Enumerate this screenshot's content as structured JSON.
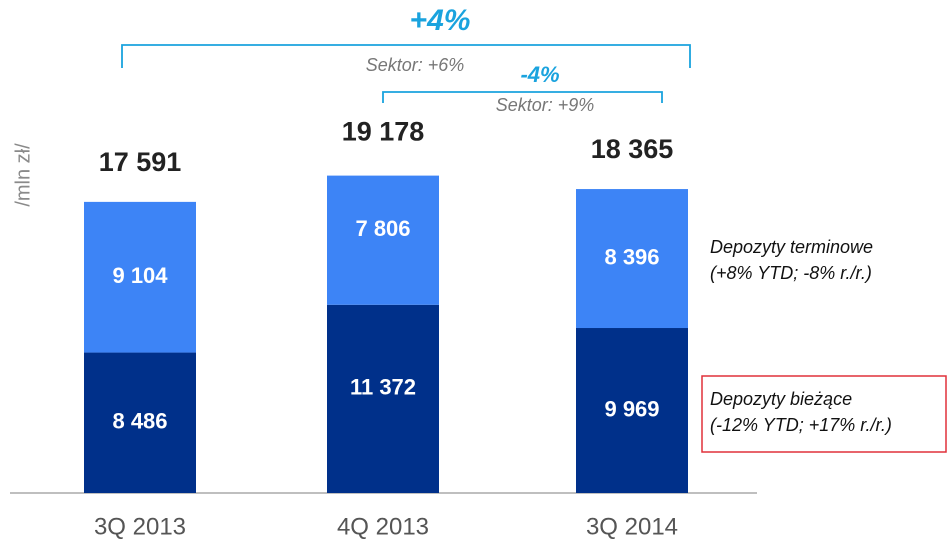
{
  "chart_data": {
    "type": "stacked_bar",
    "y_axis_label": "/mln zł/",
    "categories": [
      "3Q 2013",
      "4Q 2013",
      "3Q 2014"
    ],
    "series": [
      {
        "name": "Depozyty bieżące",
        "legend_note": "(-12% YTD; +17% r./r.)",
        "color": "#00308a",
        "values": [
          8486,
          11372,
          9969
        ],
        "value_labels": [
          "8 486",
          "11 372",
          "9 969"
        ]
      },
      {
        "name": "Depozyty terminowe",
        "legend_note": "(+8% YTD; -8% r./r.)",
        "color": "#3d84f6",
        "values": [
          9104,
          7806,
          8396
        ],
        "value_labels": [
          "9 104",
          "7 806",
          "8 396"
        ]
      }
    ],
    "totals": [
      17591,
      19178,
      18365
    ],
    "total_labels": [
      "17 591",
      "19 178",
      "18 365"
    ],
    "annotations": [
      {
        "text": "+4%",
        "subtext": "Sektor: +6%",
        "from": 0,
        "to": 2
      },
      {
        "text": "-4%",
        "subtext": "Sektor: +9%",
        "from": 1,
        "to": 2
      }
    ],
    "ylim": [
      0,
      20000
    ],
    "highlight_series": 0,
    "highlight_color": "#e0303a"
  }
}
